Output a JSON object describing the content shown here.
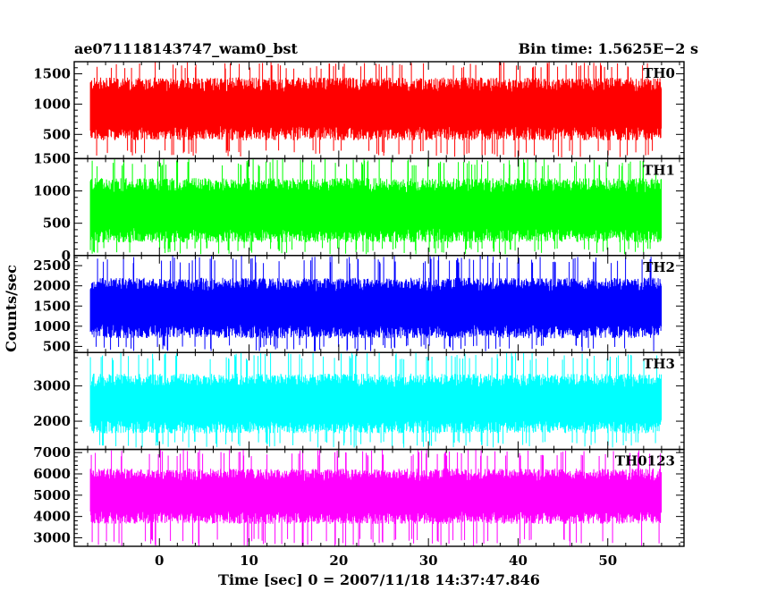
{
  "chart_data": {
    "type": "line",
    "title_left": "ae071118143747_wam0_bst",
    "title_right": "Bin time: 1.5625E−2 s",
    "xlabel": "Time [sec] 0 = 2007/11/18 14:37:47.846",
    "ylabel": "Counts/sec",
    "xlim": [
      -9.5,
      58.5
    ],
    "xticks": [
      0,
      10,
      20,
      30,
      40,
      50
    ],
    "x_range": [
      -7.7,
      56.0
    ],
    "grid": false,
    "panels": [
      {
        "name": "TH0",
        "color": "#ff0000",
        "ylim": [
          100,
          1700
        ],
        "yticks": [
          500,
          1000,
          1500
        ],
        "mean": 920,
        "amplitude": 520,
        "spike_max": 1700,
        "spike_min": 120
      },
      {
        "name": "TH1",
        "color": "#00ff00",
        "ylim": [
          0,
          1500
        ],
        "yticks": [
          0,
          500,
          1000,
          1500
        ],
        "mean": 700,
        "amplitude": 500,
        "spike_max": 1500,
        "spike_min": 20
      },
      {
        "name": "TH2",
        "color": "#0000ff",
        "ylim": [
          350,
          2750
        ],
        "yticks": [
          500,
          1000,
          1500,
          2000,
          2500
        ],
        "mean": 1450,
        "amplitude": 750,
        "spike_max": 2750,
        "spike_min": 380
      },
      {
        "name": "TH3",
        "color": "#00ffff",
        "ylim": [
          1200,
          3950
        ],
        "yticks": [
          2000,
          3000
        ],
        "mean": 2500,
        "amplitude": 850,
        "spike_max": 3950,
        "spike_min": 1250
      },
      {
        "name": "TH0123",
        "color": "#ff00ff",
        "ylim": [
          2600,
          7150
        ],
        "yticks": [
          3000,
          4000,
          5000,
          6000,
          7000
        ],
        "mean": 4950,
        "amplitude": 1300,
        "spike_max": 7150,
        "spike_min": 2600
      }
    ]
  }
}
